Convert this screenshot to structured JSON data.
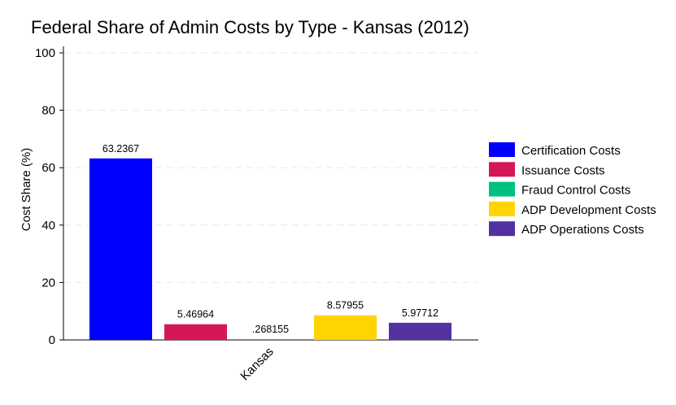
{
  "chart_data": {
    "type": "bar",
    "title": "Federal Share of Admin Costs by Type - Kansas (2012)",
    "xlabel": "",
    "ylabel": "Cost Share (%)",
    "categories": [
      "Kansas"
    ],
    "ylim": [
      0,
      100
    ],
    "yticks": [
      0,
      20,
      40,
      60,
      80,
      100
    ],
    "grid": "horizontal-dashed",
    "legend_position": "right",
    "series": [
      {
        "name": "Certification Costs",
        "values": [
          63.2367
        ],
        "label": "63.2367",
        "color": "#0000ff"
      },
      {
        "name": "Issuance Costs",
        "values": [
          5.46964
        ],
        "label": "5.46964",
        "color": "#d5175a"
      },
      {
        "name": "Fraud Control Costs",
        "values": [
          0.268155
        ],
        "label": ".268155",
        "color": "#00c07f"
      },
      {
        "name": "ADP Development Costs",
        "values": [
          8.57955
        ],
        "label": "8.57955",
        "color": "#ffd400"
      },
      {
        "name": "ADP Operations Costs",
        "values": [
          5.97712
        ],
        "label": "5.97712",
        "color": "#5232a0"
      }
    ]
  }
}
